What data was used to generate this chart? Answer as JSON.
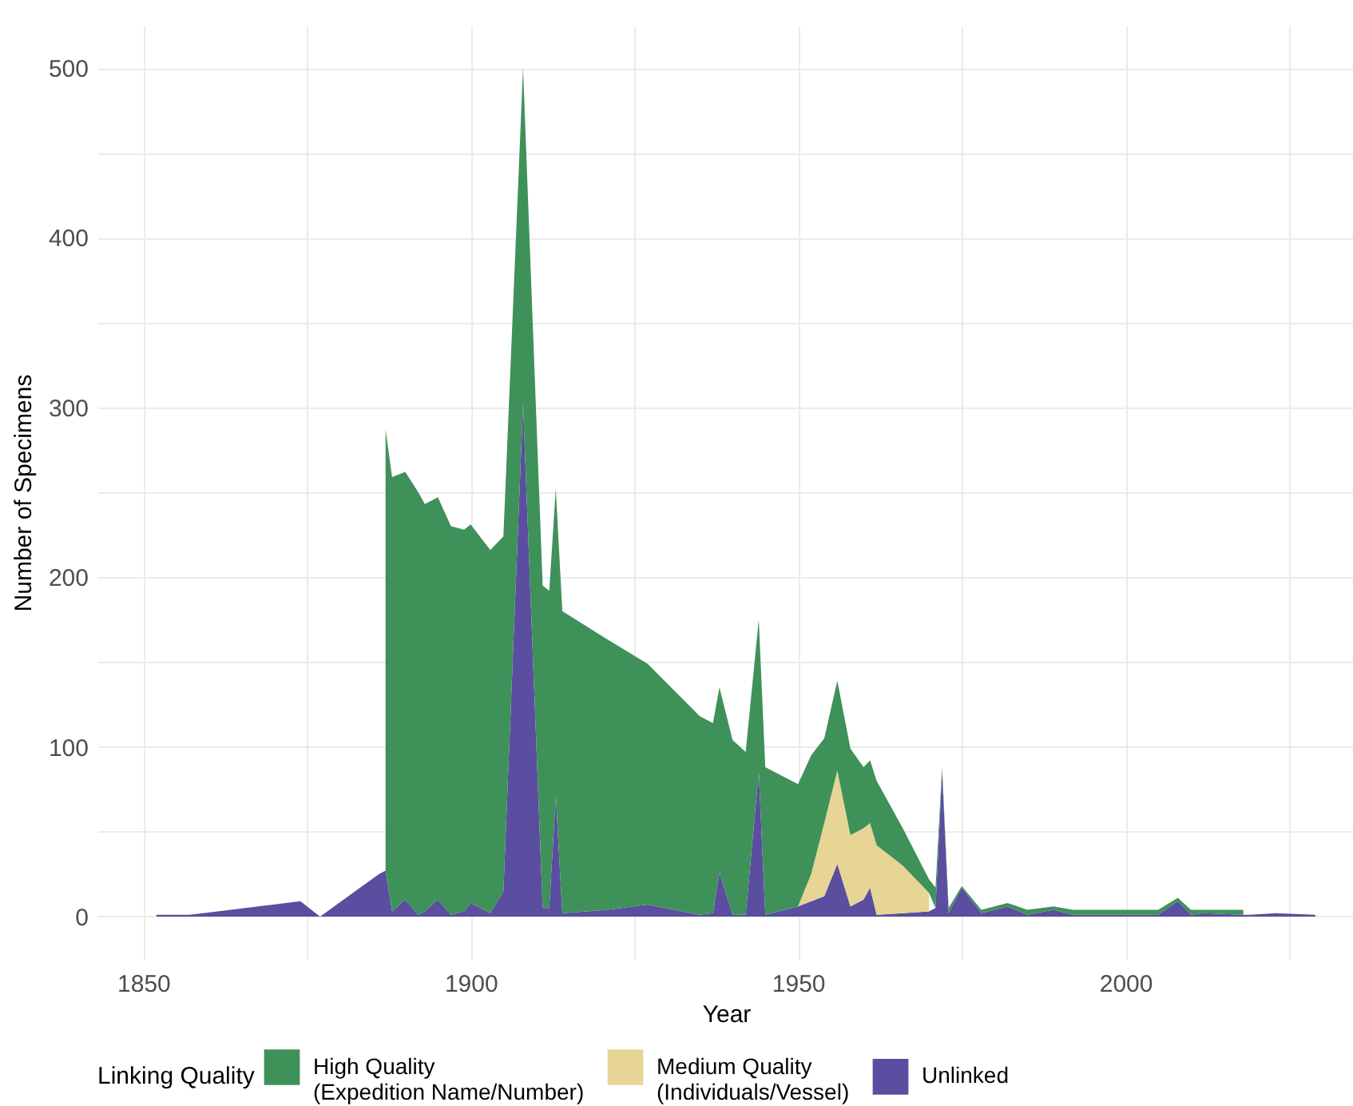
{
  "chart_data": {
    "type": "area",
    "stacked": true,
    "xlabel": "Year",
    "ylabel": "Number of Specimens",
    "legend_title": "Linking Quality",
    "legend": "bottom",
    "grid": true,
    "x": [
      1852,
      1857,
      1874,
      1877,
      1886,
      1887,
      1888,
      1890,
      1892,
      1893,
      1895,
      1897,
      1899,
      1900,
      1903,
      1905,
      1908,
      1911,
      1912,
      1913,
      1914,
      1921,
      1927,
      1935,
      1937,
      1938,
      1940,
      1942,
      1944,
      1945,
      1950,
      1952,
      1954,
      1956,
      1958,
      1960,
      1961,
      1962,
      1966,
      1970,
      1971,
      1972,
      1973,
      1975,
      1978,
      1982,
      1985,
      1989,
      1992,
      2002,
      2005,
      2008,
      2010,
      2012,
      2018,
      2019,
      2023,
      2029
    ],
    "series": [
      {
        "name": "Unlinked",
        "color": "#5b4ea0",
        "values": [
          1,
          1,
          9,
          0,
          25,
          27,
          3,
          10,
          1,
          3,
          10,
          1,
          3,
          8,
          2,
          15,
          302,
          5,
          5,
          71,
          2,
          4,
          7,
          1,
          2,
          26,
          1,
          1,
          85,
          1,
          6,
          9,
          12,
          31,
          6,
          10,
          17,
          1,
          2,
          3,
          5,
          86,
          2,
          17,
          2,
          6,
          1,
          4,
          1,
          1,
          1,
          9,
          1,
          2,
          1,
          1,
          2,
          1
        ]
      },
      {
        "name": "Medium Quality (Individuals/Vessel)",
        "color": "#e6d595",
        "values": [
          null,
          null,
          null,
          null,
          null,
          null,
          null,
          null,
          null,
          null,
          null,
          null,
          null,
          null,
          null,
          null,
          null,
          null,
          null,
          null,
          null,
          null,
          null,
          null,
          null,
          null,
          null,
          null,
          null,
          null,
          0,
          16,
          43,
          55,
          42,
          42,
          38,
          41,
          28,
          11,
          null,
          null,
          null,
          null,
          null,
          null,
          null,
          null,
          null,
          null,
          null,
          null,
          null,
          null,
          null,
          null,
          null,
          null
        ]
      },
      {
        "name": "High Quality (Expedition Name/Number)",
        "color": "#3f915a",
        "values": [
          null,
          null,
          null,
          null,
          null,
          260,
          256,
          252,
          249,
          240,
          237,
          229,
          225,
          223,
          214,
          209,
          198,
          190,
          187,
          181,
          178,
          159,
          142,
          117,
          112,
          109,
          103,
          96,
          90,
          87,
          72,
          70,
          50,
          53,
          51,
          36,
          37,
          38,
          22,
          8,
          12,
          2,
          3,
          1,
          2,
          2,
          3,
          2,
          3,
          3,
          3,
          2,
          3,
          2,
          3,
          null,
          null,
          null
        ]
      }
    ],
    "xlim": [
      1843,
      2035
    ],
    "xticks": [
      1850,
      {
        "value": 1875,
        "label": null
      },
      1900,
      {
        "value": 1925,
        "label": null
      },
      1950,
      {
        "value": 1975,
        "label": null
      },
      2000,
      {
        "value": 2025,
        "label": null
      }
    ],
    "ylim": [
      -25,
      525
    ],
    "yticks": [
      0,
      {
        "value": 50,
        "label": null
      },
      100,
      {
        "value": 150,
        "label": null
      },
      200,
      {
        "value": 250,
        "label": null
      },
      300,
      {
        "value": 350,
        "label": null
      },
      400,
      {
        "value": 450,
        "label": null
      },
      500
    ]
  }
}
